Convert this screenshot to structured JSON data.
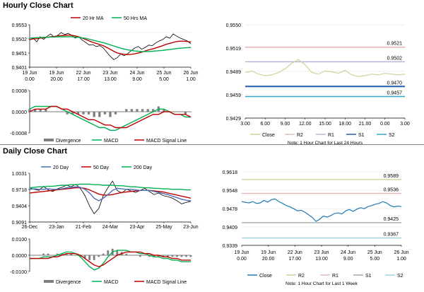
{
  "sections": {
    "hourly_title": "Hourly Close Chart",
    "daily_title": "Daily Close Chart"
  },
  "colors": {
    "ma_short": "#c00000",
    "ma_long": "#00b050",
    "price": "#000000",
    "macd": "#00b050",
    "signal": "#c00000",
    "divergence": "#7f7f7f",
    "close_hourly": "#c4d79b",
    "close_weekly": "#1f7ab8",
    "r2": "#e6b8b7",
    "r1": "#b7b5d7",
    "s1": "#1f5fae",
    "s2": "#31a9c8",
    "r2_weekly": "#c4d79b",
    "r1_weekly": "#e6b8b7",
    "s1_weekly": "#a6a6a6",
    "s2_weekly": "#9fd3dd"
  },
  "chart_data": [
    {
      "id": "hourly_price",
      "type": "line",
      "legend": [
        "20 Hr MA",
        "50 Hrs MA"
      ],
      "y_ticks": [
        "0.9553",
        "0.9502",
        "0.9451",
        "0.9401"
      ],
      "ylim": [
        0.9401,
        0.9553
      ],
      "x_ticks": [
        [
          "19 Jun",
          "0.00"
        ],
        [
          "19 Jun",
          "20.00"
        ],
        [
          "22 Jun",
          "17.00"
        ],
        [
          "23 Jun",
          "13.00"
        ],
        [
          "24 Jun",
          "9.00"
        ],
        [
          "25 Jun",
          "5.00"
        ],
        [
          "26 Jun",
          "1.00"
        ]
      ],
      "series": [
        {
          "name": "Price",
          "values": [
            0.9498,
            0.9505,
            0.9492,
            0.951,
            0.95,
            0.9512,
            0.952,
            0.9508,
            0.9515,
            0.9525,
            0.9518,
            0.9522,
            0.9515,
            0.9505,
            0.951,
            0.9498,
            0.949,
            0.948,
            0.9482,
            0.9475,
            0.9478,
            0.947,
            0.9455,
            0.944,
            0.9428,
            0.9435,
            0.9448,
            0.9442,
            0.945,
            0.946,
            0.947,
            0.9475,
            0.9465,
            0.9472,
            0.948,
            0.9478,
            0.9488,
            0.9495,
            0.95,
            0.951,
            0.9505,
            0.952,
            0.9512,
            0.9505,
            0.95,
            0.9495,
            0.9485
          ]
        },
        {
          "name": "20 Hr MA",
          "values": [
            0.95,
            0.9502,
            0.9503,
            0.9505,
            0.9506,
            0.9508,
            0.951,
            0.9511,
            0.9513,
            0.9514,
            0.9515,
            0.9516,
            0.9515,
            0.9513,
            0.951,
            0.9505,
            0.95,
            0.9495,
            0.949,
            0.9486,
            0.9482,
            0.9478,
            0.9472,
            0.9465,
            0.9458,
            0.9452,
            0.9449,
            0.9447,
            0.9446,
            0.9447,
            0.9449,
            0.9452,
            0.9455,
            0.9459,
            0.9463,
            0.9466,
            0.947,
            0.9474,
            0.9478,
            0.9483,
            0.9486,
            0.949,
            0.9493,
            0.9494,
            0.9494,
            0.9493,
            0.9491
          ]
        },
        {
          "name": "50 Hrs MA",
          "values": [
            0.9505,
            0.9506,
            0.9507,
            0.9507,
            0.9508,
            0.9508,
            0.9509,
            0.9509,
            0.951,
            0.951,
            0.951,
            0.951,
            0.951,
            0.9509,
            0.9508,
            0.9506,
            0.9504,
            0.9501,
            0.9498,
            0.9495,
            0.9492,
            0.9489,
            0.9485,
            0.9481,
            0.9477,
            0.9473,
            0.9469,
            0.9466,
            0.9463,
            0.9461,
            0.9459,
            0.9458,
            0.9457,
            0.9457,
            0.9457,
            0.9458,
            0.9459,
            0.946,
            0.9461,
            0.9463,
            0.9464,
            0.9466,
            0.9468,
            0.9469,
            0.947,
            0.9471,
            0.9472
          ]
        }
      ]
    },
    {
      "id": "hourly_macd",
      "type": "line",
      "y_ticks": [
        "0.0008",
        "0.0000",
        "-0.0008"
      ],
      "ylim": [
        -0.0008,
        0.0008
      ],
      "legend": [
        "Divergence",
        "MACD",
        "MACD Signal Line"
      ],
      "series": [
        {
          "name": "MACD",
          "values": [
            0.0001,
            0.0002,
            0.0002,
            0.0002,
            0.0002,
            0.0002,
            0.0001,
            0.0,
            -0.0001,
            -0.0002,
            -0.0003,
            -0.0004,
            -0.0005,
            -0.0006,
            -0.0006,
            -0.0007,
            -0.0007,
            -0.0006,
            -0.0005,
            -0.0004,
            -0.0003,
            -0.0002,
            -0.0001,
            0.0,
            0.0001,
            0.0001,
            0.0,
            -0.0001,
            -0.0001,
            -0.0002,
            -0.0002
          ]
        },
        {
          "name": "MACD Signal Line",
          "values": [
            0.0,
            0.0001,
            0.0001,
            0.0001,
            0.0002,
            0.0002,
            0.0001,
            0.0001,
            0.0,
            -0.0001,
            -0.0002,
            -0.0003,
            -0.0003,
            -0.0004,
            -0.0005,
            -0.0005,
            -0.0006,
            -0.0006,
            -0.0006,
            -0.0005,
            -0.0004,
            -0.0003,
            -0.0002,
            -0.0001,
            -0.0001,
            0.0,
            0.0,
            -0.0001,
            -0.0001,
            -0.0001,
            -0.0002
          ]
        },
        {
          "name": "Divergence",
          "values": [
            0.0001,
            0.0001,
            0.0001,
            0.0001,
            0.0,
            0.0,
            0.0,
            -0.0001,
            -0.0001,
            -0.0001,
            -0.0001,
            -0.0001,
            -0.0002,
            -0.0002,
            -0.0001,
            -0.0002,
            -0.0001,
            0.0,
            0.0001,
            0.0001,
            0.0001,
            0.0001,
            0.0001,
            0.0001,
            0.0002,
            0.0001,
            0.0,
            0.0,
            0.0,
            -0.0001,
            0.0
          ]
        }
      ]
    },
    {
      "id": "hourly_levels",
      "type": "line",
      "y_ticks": [
        "0.9550",
        "0.9519",
        "0.9489",
        "0.9459",
        "0.9429"
      ],
      "ylim": [
        0.9429,
        0.955
      ],
      "x_ticks": [
        "3.00",
        "6.00",
        "9.00",
        "12.00",
        "15.00",
        "18.00",
        "21.00",
        "0.00",
        "3.00"
      ],
      "legend": [
        "Close",
        "R2",
        "R1",
        "S1",
        "S2"
      ],
      "note": "Note: 1 Hour Chart for Last 24 Hours",
      "levels": [
        {
          "name": "R2",
          "value": 0.9521,
          "label": "0.9521"
        },
        {
          "name": "R1",
          "value": 0.9502,
          "label": "0.9502"
        },
        {
          "name": "S1",
          "value": 0.947,
          "label": "0.9470"
        },
        {
          "name": "S2",
          "value": 0.9457,
          "label": "0.9457"
        }
      ],
      "series": [
        {
          "name": "Close",
          "values": [
            0.9488,
            0.949,
            0.9486,
            0.9484,
            0.9485,
            0.9488,
            0.9493,
            0.95,
            0.9505,
            0.9498,
            0.9488,
            0.9486,
            0.949,
            0.9489,
            0.9487,
            0.9491,
            0.9485,
            0.9483,
            0.9484,
            0.9486,
            0.9485,
            0.9487,
            0.9486,
            0.9485,
            0.9486
          ]
        }
      ]
    },
    {
      "id": "daily_price",
      "type": "line",
      "legend": [
        "20 Day",
        "50 Day",
        "200 Day"
      ],
      "y_ticks": [
        "1.0031",
        "0.9718",
        "0.9404",
        "0.9091"
      ],
      "ylim": [
        0.9091,
        1.0031
      ],
      "x_ticks": [
        "26-Dec",
        "23-Jan",
        "21-Feb",
        "24-Mar",
        "23-Apr",
        "25-May",
        "23-Jun"
      ],
      "series": [
        {
          "name": "Price",
          "values": [
            0.975,
            0.972,
            0.97,
            0.978,
            0.971,
            0.968,
            0.973,
            0.976,
            0.98,
            0.977,
            0.982,
            0.974,
            0.96,
            0.94,
            0.925,
            0.935,
            0.96,
            0.975,
            0.988,
            0.97,
            0.965,
            0.972,
            0.969,
            0.966,
            0.97,
            0.974,
            0.968,
            0.962,
            0.965,
            0.96,
            0.958,
            0.955,
            0.95,
            0.944,
            0.947,
            0.949
          ]
        },
        {
          "name": "20 Day",
          "values": [
            0.972,
            0.973,
            0.972,
            0.972,
            0.973,
            0.972,
            0.972,
            0.973,
            0.975,
            0.976,
            0.977,
            0.976,
            0.972,
            0.965,
            0.955,
            0.95,
            0.955,
            0.962,
            0.97,
            0.974,
            0.973,
            0.972,
            0.972,
            0.971,
            0.97,
            0.97,
            0.97,
            0.968,
            0.966,
            0.964,
            0.962,
            0.959,
            0.956,
            0.953,
            0.951,
            0.95
          ]
        },
        {
          "name": "50 Day",
          "values": [
            0.965,
            0.966,
            0.967,
            0.968,
            0.969,
            0.97,
            0.971,
            0.972,
            0.973,
            0.974,
            0.975,
            0.975,
            0.974,
            0.971,
            0.967,
            0.963,
            0.961,
            0.961,
            0.962,
            0.964,
            0.966,
            0.967,
            0.968,
            0.969,
            0.97,
            0.97,
            0.97,
            0.969,
            0.968,
            0.967,
            0.965,
            0.963,
            0.961,
            0.959,
            0.957,
            0.955
          ]
        },
        {
          "name": "200 Day",
          "values": [
            0.975,
            0.976,
            0.977,
            0.977,
            0.978,
            0.978,
            0.979,
            0.98,
            0.98,
            0.981,
            0.981,
            0.982,
            0.982,
            0.982,
            0.981,
            0.981,
            0.98,
            0.98,
            0.98,
            0.979,
            0.979,
            0.978,
            0.977,
            0.977,
            0.976,
            0.975,
            0.975,
            0.974,
            0.974,
            0.973,
            0.973,
            0.972,
            0.972,
            0.972,
            0.971,
            0.971
          ]
        }
      ]
    },
    {
      "id": "daily_macd",
      "type": "line",
      "y_ticks": [
        "0.0100",
        "0.0000",
        "-0.0100"
      ],
      "ylim": [
        -0.01,
        0.01
      ],
      "legend": [
        "Divergence",
        "MACD",
        "MACD Signal Line"
      ],
      "series": [
        {
          "name": "MACD",
          "values": [
            -0.002,
            -0.002,
            -0.002,
            -0.001,
            -0.001,
            -0.001,
            0.0,
            0.001,
            0.002,
            0.002,
            0.001,
            -0.001,
            -0.004,
            -0.007,
            -0.009,
            -0.008,
            -0.005,
            -0.001,
            0.002,
            0.003,
            0.003,
            0.003,
            0.002,
            0.002,
            0.001,
            0.001,
            0.0,
            -0.001,
            -0.001,
            -0.002,
            -0.002,
            -0.003,
            -0.003,
            -0.004,
            -0.004,
            -0.004
          ]
        },
        {
          "name": "MACD Signal Line",
          "values": [
            -0.002,
            -0.002,
            -0.002,
            -0.002,
            -0.002,
            -0.001,
            -0.001,
            0.0,
            0.001,
            0.001,
            0.001,
            0.0,
            -0.002,
            -0.004,
            -0.006,
            -0.007,
            -0.006,
            -0.004,
            -0.002,
            0.0,
            0.001,
            0.002,
            0.002,
            0.002,
            0.002,
            0.001,
            0.001,
            0.0,
            0.0,
            -0.001,
            -0.001,
            -0.002,
            -0.002,
            -0.003,
            -0.003,
            -0.003
          ]
        },
        {
          "name": "Divergence",
          "values": [
            0.0,
            0.0,
            0.0,
            0.001,
            0.001,
            0.0,
            0.001,
            0.001,
            0.001,
            0.001,
            0.0,
            -0.001,
            -0.002,
            -0.003,
            -0.003,
            -0.001,
            0.001,
            0.003,
            0.004,
            0.003,
            0.002,
            0.001,
            0.0,
            0.0,
            -0.001,
            0.0,
            -0.001,
            -0.001,
            -0.001,
            -0.001,
            -0.001,
            -0.001,
            -0.001,
            -0.001,
            -0.001,
            -0.001
          ]
        }
      ]
    },
    {
      "id": "weekly_levels",
      "type": "line",
      "y_ticks": [
        "0.9618",
        "0.9548",
        "0.9478",
        "0.9409",
        "0.9339"
      ],
      "ylim": [
        0.9339,
        0.9618
      ],
      "x_ticks": [
        [
          "19 Jun",
          "0.00"
        ],
        [
          "19 Jun",
          "20.00"
        ],
        [
          "22 Jun",
          "17.00"
        ],
        [
          "23 Jun",
          "13.00"
        ],
        [
          "24 Jun",
          "9.00"
        ],
        [
          "25 Jun",
          "5.00"
        ],
        [
          "26 Jun",
          "1.00"
        ]
      ],
      "legend": [
        "Close",
        "R2",
        "R1",
        "S1",
        "S2"
      ],
      "note": "Note: 1 Hour Chart for Last 1 Week",
      "levels": [
        {
          "name": "R2",
          "value": 0.9589,
          "label": "0.9589"
        },
        {
          "name": "R1",
          "value": 0.9536,
          "label": "0.9536"
        },
        {
          "name": "S1",
          "value": 0.9425,
          "label": "0.9425"
        },
        {
          "name": "S2",
          "value": 0.9367,
          "label": "0.9367"
        }
      ],
      "series": [
        {
          "name": "Close",
          "values": [
            0.9505,
            0.9502,
            0.95,
            0.9505,
            0.9498,
            0.95,
            0.951,
            0.9503,
            0.9512,
            0.9515,
            0.9505,
            0.9498,
            0.949,
            0.9485,
            0.9478,
            0.947,
            0.9472,
            0.9465,
            0.9455,
            0.9445,
            0.943,
            0.9438,
            0.945,
            0.9446,
            0.9452,
            0.946,
            0.9462,
            0.9458,
            0.947,
            0.9475,
            0.9468,
            0.9476,
            0.9482,
            0.9478,
            0.9486,
            0.949,
            0.9495,
            0.9498,
            0.9505,
            0.95,
            0.949,
            0.9485,
            0.9488,
            0.9486
          ]
        }
      ]
    }
  ]
}
